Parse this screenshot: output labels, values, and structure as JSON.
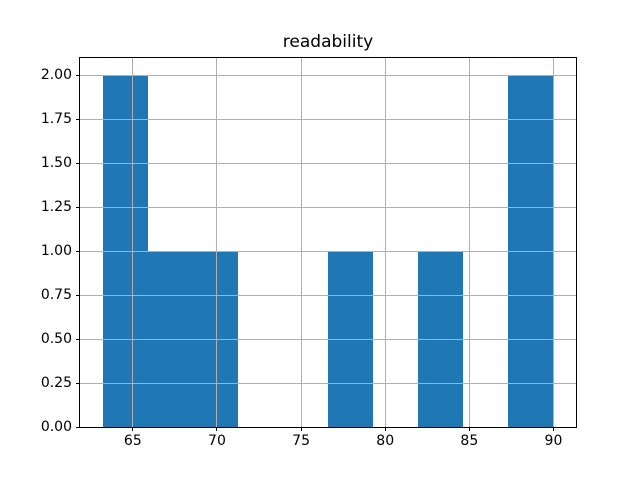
{
  "chart_data": {
    "type": "bar",
    "subtype": "histogram",
    "title": "readability",
    "xlabel": "",
    "ylabel": "",
    "bin_edges": [
      63.2,
      65.88,
      68.56,
      71.24,
      73.92,
      76.6,
      79.28,
      81.96,
      84.64,
      87.32,
      90.0
    ],
    "counts": [
      2,
      1,
      1,
      0,
      0,
      1,
      0,
      1,
      0,
      2
    ],
    "xlim": [
      61.86,
      91.34
    ],
    "ylim": [
      0,
      2.1
    ],
    "x_ticks": [
      65,
      70,
      75,
      80,
      85,
      90
    ],
    "x_tick_labels": [
      "65",
      "70",
      "75",
      "80",
      "85",
      "90"
    ],
    "y_ticks": [
      0.0,
      0.25,
      0.5,
      0.75,
      1.0,
      1.25,
      1.5,
      1.75,
      2.0
    ],
    "y_tick_labels": [
      "0.00",
      "0.25",
      "0.50",
      "0.75",
      "1.00",
      "1.25",
      "1.50",
      "1.75",
      "2.00"
    ],
    "grid": true,
    "grid_above_bars": true,
    "legend": null,
    "colors": {
      "bar_fill": "#1f77b4",
      "grid": "#b0b0b0",
      "spine": "#000000",
      "text": "#000000",
      "background": "#ffffff"
    }
  }
}
